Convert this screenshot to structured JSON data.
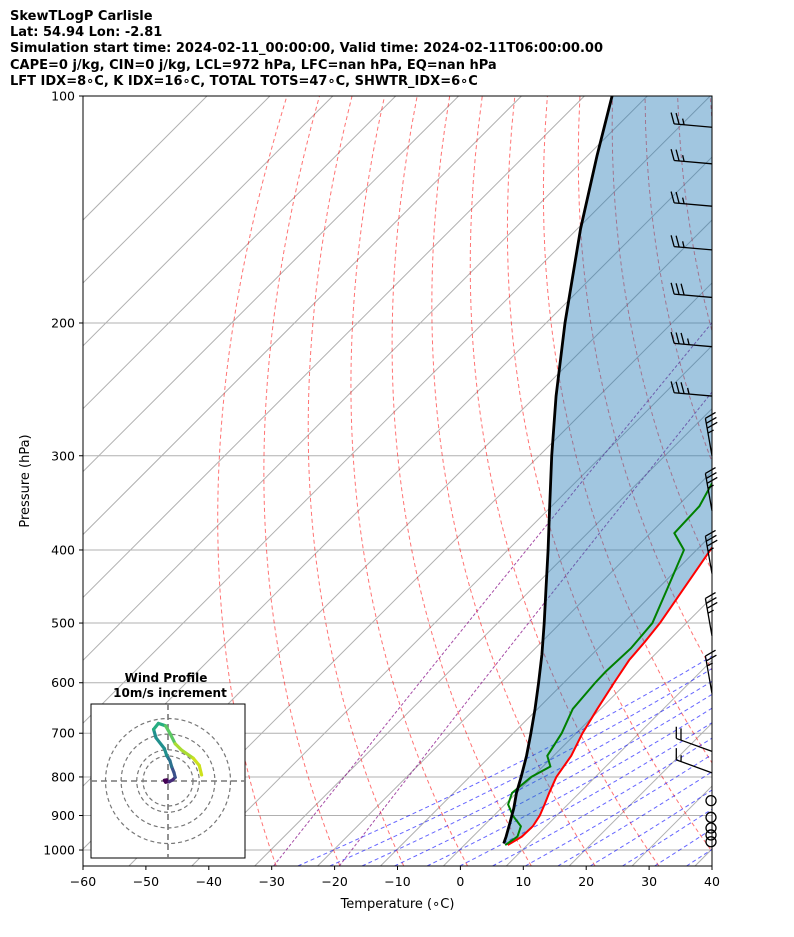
{
  "header": {
    "line1": "SkewTLogP Carlisle",
    "line2": "Lat: 54.94   Lon: -2.81",
    "line3": "Simulation start time: 2024-02-11_00:00:00, Valid time: 2024-02-11T06:00:00.00",
    "line4": "CAPE=0 j/kg, CIN=0 j/kg, LCL=972 hPa, LFC=nan hPa, EQ=nan hPa",
    "line5": "LFT IDX=8∘C, K IDX=16∘C, TOTAL TOTS=47∘C, SHWTR_IDX=6∘C"
  },
  "chart_data": {
    "type": "line",
    "xlabel": "Temperature (∘C)",
    "ylabel": "Pressure (hPa)",
    "xlim": [
      -60,
      40
    ],
    "ylim": [
      1050,
      100
    ],
    "yscale": "log",
    "grid": true,
    "x_ticks": [
      "−60",
      "−50",
      "−40",
      "−30",
      "−20",
      "−10",
      "0",
      "10",
      "20",
      "30",
      "40"
    ],
    "x_tick_values": [
      -60,
      -50,
      -40,
      -30,
      -20,
      -10,
      0,
      10,
      20,
      30,
      40
    ],
    "y_ticks": [
      "100",
      "200",
      "300",
      "400",
      "500",
      "600",
      "700",
      "800",
      "900",
      "1000"
    ],
    "y_tick_values": [
      100,
      200,
      300,
      400,
      500,
      600,
      700,
      800,
      900,
      1000
    ],
    "series": [
      {
        "role": "temperature",
        "color": "#ff0000",
        "points": [
          [
            985,
            6.9
          ],
          [
            960,
            7.8
          ],
          [
            930,
            7.9
          ],
          [
            900,
            7.3
          ],
          [
            870,
            6.3
          ],
          [
            840,
            5.2
          ],
          [
            800,
            3.8
          ],
          [
            750,
            2.8
          ],
          [
            700,
            1.0
          ],
          [
            650,
            -0.5
          ],
          [
            600,
            -2.0
          ],
          [
            560,
            -3.2
          ],
          [
            530,
            -3.6
          ],
          [
            500,
            -4.2
          ],
          [
            450,
            -5.9
          ],
          [
            400,
            -7.8
          ],
          [
            375,
            -8.6
          ],
          [
            350,
            -10.6
          ],
          [
            320,
            -12.6
          ],
          [
            300,
            -14.0
          ],
          [
            290,
            -14.5
          ],
          [
            270,
            -12.8
          ],
          [
            250,
            -12.9
          ],
          [
            230,
            -11.5
          ],
          [
            210,
            -8.8
          ],
          [
            190,
            -5.0
          ],
          [
            175,
            -2.5
          ],
          [
            160,
            1.9
          ],
          [
            140,
            6.9
          ],
          [
            120,
            11.0
          ],
          [
            110,
            13.3
          ],
          [
            100,
            16.0
          ]
        ]
      },
      {
        "role": "dewpoint",
        "color": "#008000",
        "points": [
          [
            985,
            6.5
          ],
          [
            960,
            7.1
          ],
          [
            930,
            6.0
          ],
          [
            900,
            3.0
          ],
          [
            870,
            0.5
          ],
          [
            840,
            -0.7
          ],
          [
            800,
            -0.2
          ],
          [
            775,
            1.2
          ],
          [
            750,
            -1.0
          ],
          [
            700,
            -2.3
          ],
          [
            650,
            -4.4
          ],
          [
            600,
            -5.0
          ],
          [
            580,
            -5.1
          ],
          [
            540,
            -4.8
          ],
          [
            500,
            -5.4
          ],
          [
            450,
            -8.5
          ],
          [
            400,
            -12.0
          ],
          [
            380,
            -16.2
          ],
          [
            350,
            -16.5
          ],
          [
            320,
            -18.6
          ],
          [
            300,
            -20.0
          ],
          [
            285,
            -21.5
          ],
          [
            260,
            -24.3
          ],
          [
            240,
            -25.6
          ],
          [
            220,
            -25.7
          ],
          [
            200,
            -26.7
          ],
          [
            180,
            -26.3
          ],
          [
            165,
            -26.8
          ],
          [
            150,
            -25.4
          ],
          [
            120,
            -18.3
          ],
          [
            105,
            -12.8
          ],
          [
            100,
            -11.2
          ]
        ]
      },
      {
        "role": "parcel",
        "color": "#000000",
        "points": [
          [
            980,
            6.0
          ],
          [
            960,
            5.3
          ],
          [
            920,
            3.7
          ],
          [
            880,
            2.0
          ],
          [
            840,
            0.0
          ],
          [
            800,
            -1.8
          ],
          [
            750,
            -4.3
          ],
          [
            700,
            -7.2
          ],
          [
            650,
            -10.4
          ],
          [
            600,
            -14.0
          ],
          [
            550,
            -18.0
          ],
          [
            500,
            -22.6
          ],
          [
            450,
            -27.8
          ],
          [
            400,
            -33.6
          ],
          [
            350,
            -40.3
          ],
          [
            300,
            -48.0
          ],
          [
            250,
            -56.8
          ],
          [
            200,
            -67.0
          ],
          [
            150,
            -79.5
          ],
          [
            120,
            -88.5
          ],
          [
            100,
            -95.6
          ]
        ]
      }
    ],
    "wind_barbs_right": [
      {
        "p": 975,
        "calm": true
      },
      {
        "p": 955,
        "calm": true
      },
      {
        "p": 935,
        "calm": true
      },
      {
        "p": 905,
        "calm": true
      },
      {
        "p": 860,
        "calm": true
      },
      {
        "p": 790,
        "barbs": 1.5
      },
      {
        "p": 740,
        "barbs": 2
      },
      {
        "p": 620,
        "barbs": 2.5
      },
      {
        "p": 520,
        "barbs": 3.5
      },
      {
        "p": 430,
        "barbs": 3.5
      },
      {
        "p": 355,
        "barbs": 3.5
      },
      {
        "p": 300,
        "barbs": 3.5
      },
      {
        "p": 250,
        "barbs": 3.5
      },
      {
        "p": 215,
        "barbs": 3.5
      },
      {
        "p": 185,
        "barbs": 3
      },
      {
        "p": 160,
        "barbs": 2.5
      },
      {
        "p": 140,
        "barbs": 2.5
      },
      {
        "p": 123,
        "barbs": 2.5
      },
      {
        "p": 110,
        "barbs": 2.5
      }
    ],
    "hodograph": {
      "title": "Wind Profile",
      "subtitle": "10m/s increment",
      "ring_spacing_ms": 10,
      "uv_points": [
        [
          -0.5,
          0.5
        ],
        [
          -1.5,
          0.3
        ],
        [
          -1.0,
          -0.5
        ],
        [
          0.5,
          -0.3
        ],
        [
          2.0,
          0.5
        ],
        [
          3.0,
          1.5
        ],
        [
          2.5,
          3.5
        ],
        [
          1.5,
          6.0
        ],
        [
          0.8,
          8.5
        ],
        [
          -0.5,
          10.5
        ],
        [
          -1.5,
          13.5
        ],
        [
          -5.0,
          18.0
        ],
        [
          -6.0,
          21.5
        ],
        [
          -4.0,
          24.0
        ],
        [
          -1.0,
          23.0
        ],
        [
          1.0,
          19.5
        ],
        [
          3.0,
          15.5
        ],
        [
          5.5,
          13.0
        ],
        [
          10.5,
          9.5
        ],
        [
          13.0,
          6.5
        ],
        [
          14.0,
          2.5
        ]
      ]
    }
  }
}
